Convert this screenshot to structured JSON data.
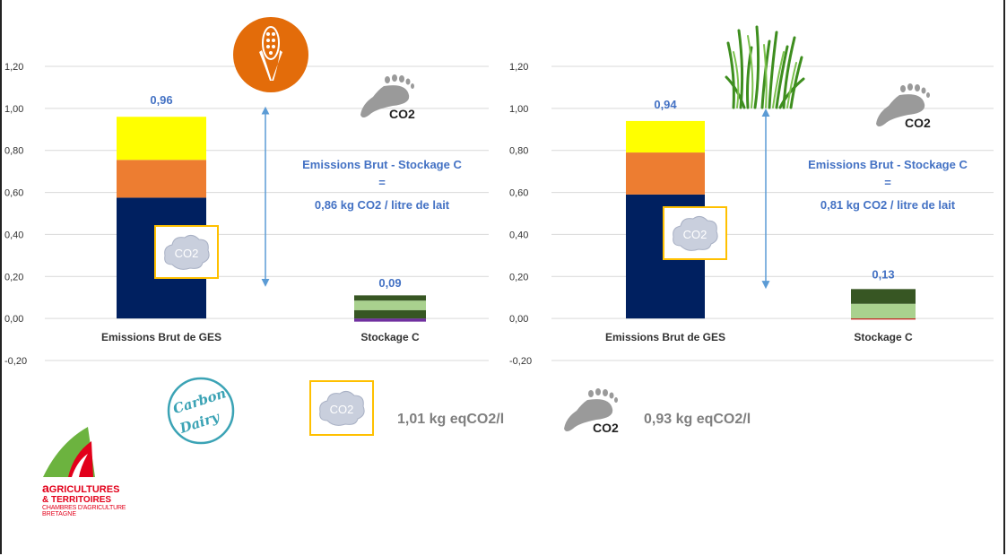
{
  "chart_data": [
    {
      "type": "bar",
      "stacked": true,
      "categories": [
        "Emissions Brut de GES",
        "Stockage C"
      ],
      "ylim": [
        -0.2,
        1.2
      ],
      "yticks": [
        "1,20",
        "1,00",
        "0,80",
        "0,60",
        "0,40",
        "0,20",
        "0,00",
        "-0,20"
      ],
      "ytick_values": [
        1.2,
        1.0,
        0.8,
        0.6,
        0.4,
        0.2,
        0.0,
        -0.2
      ],
      "grid": true,
      "stacks": [
        [
          {
            "value": 0.575,
            "color": "#002060"
          },
          {
            "value": 0.18,
            "color": "#ED7D31"
          },
          {
            "value": 0.205,
            "color": "#FFFF00"
          }
        ],
        [
          {
            "value": -0.015,
            "color": "#7030A0"
          },
          {
            "value": 0.04,
            "color": "#375623"
          },
          {
            "value": 0.045,
            "color": "#A9D18E"
          },
          {
            "value": 0.025,
            "color": "#375623"
          }
        ]
      ],
      "totals": [
        "0,96",
        "0,09"
      ],
      "total_values": [
        0.96,
        0.09
      ],
      "annotation": {
        "line1": "Emissions Brut - Stockage C",
        "line2": "=",
        "line3": "0,86  kg CO2 / litre de lait"
      },
      "arrow_range": [
        0.17,
        0.99
      ]
    },
    {
      "type": "bar",
      "stacked": true,
      "categories": [
        "Emissions Brut de GES",
        "Stockage C"
      ],
      "ylim": [
        -0.2,
        1.2
      ],
      "yticks": [
        "1,20",
        "1,00",
        "0,80",
        "0,60",
        "0,40",
        "0,20",
        "0,00",
        "-0,20"
      ],
      "ytick_values": [
        1.2,
        1.0,
        0.8,
        0.6,
        0.4,
        0.2,
        0.0,
        -0.2
      ],
      "grid": true,
      "stacks": [
        [
          {
            "value": 0.59,
            "color": "#002060"
          },
          {
            "value": 0.2,
            "color": "#ED7D31"
          },
          {
            "value": 0.15,
            "color": "#FFFF00"
          }
        ],
        [
          {
            "value": -0.005,
            "color": "#C00000"
          },
          {
            "value": 0.07,
            "color": "#A9D18E"
          },
          {
            "value": 0.07,
            "color": "#375623"
          }
        ]
      ],
      "totals": [
        "0,94",
        "0,13"
      ],
      "total_values": [
        0.94,
        0.13
      ],
      "annotation": {
        "line1": "Emissions Brut - Stockage C",
        "line2": "=",
        "line3": "0,81  kg CO2 / litre de lait"
      },
      "arrow_range": [
        0.16,
        0.98
      ]
    }
  ],
  "icons": {
    "corn": "corn-icon",
    "grass": "grass-icon",
    "footprint": "co2-footprint-icon",
    "cloud": "co2-cloud-icon"
  },
  "cloud_text": "CO2",
  "footprint_text": "CO2",
  "carbon_dairy": {
    "line1": "Carbon",
    "line2": "Dairy"
  },
  "summary": {
    "gross": "1,01 kg eqCO2/l",
    "net": "0,93 kg eqCO2/l"
  },
  "logo": {
    "line1_a": "a",
    "line1_rest": "GRICULTURES",
    "line2": "& TERRITOIRES",
    "line3": "CHAMBRES D'AGRICULTURE",
    "line4": "BRETAGNE"
  },
  "colors": {
    "accent_blue": "#4472C4",
    "frame_orange": "#FFC000",
    "corn_orange": "#E36C0A"
  }
}
